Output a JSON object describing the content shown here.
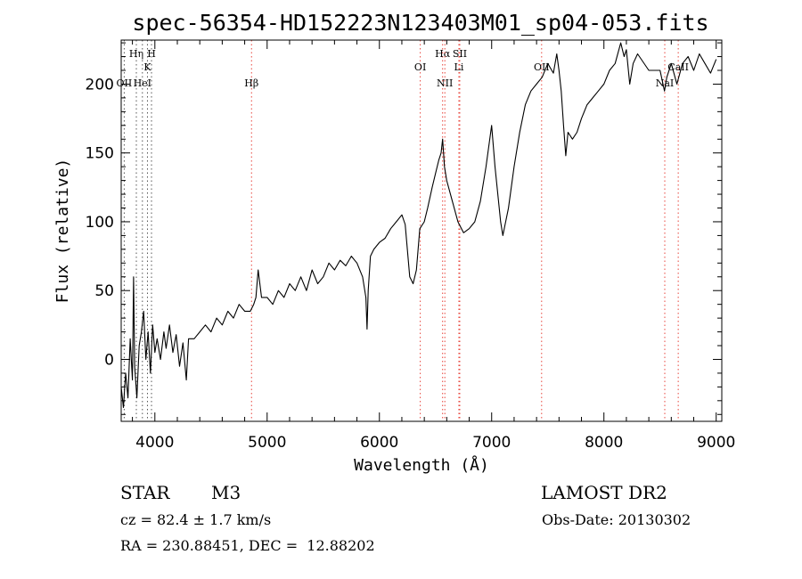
{
  "chart_data": {
    "type": "line",
    "title": "spec-56354-HD152223N123403M01_sp04-053.fits",
    "xlabel": "Wavelength (Å)",
    "ylabel": "Flux (relative)",
    "xlim": [
      3700,
      9050
    ],
    "ylim": [
      -45,
      232
    ],
    "xticks": [
      4000,
      5000,
      6000,
      7000,
      8000,
      9000
    ],
    "yticks": [
      0,
      50,
      100,
      150,
      200
    ],
    "grid": false,
    "series": [
      {
        "points": [
          [
            3700,
            -20
          ],
          [
            3720,
            -35
          ],
          [
            3740,
            -10
          ],
          [
            3760,
            -28
          ],
          [
            3780,
            15
          ],
          [
            3800,
            -15
          ],
          [
            3810,
            60
          ],
          [
            3820,
            -5
          ],
          [
            3840,
            -28
          ],
          [
            3860,
            10
          ],
          [
            3880,
            20
          ],
          [
            3900,
            35
          ],
          [
            3920,
            0
          ],
          [
            3940,
            20
          ],
          [
            3960,
            -10
          ],
          [
            3980,
            25
          ],
          [
            4000,
            5
          ],
          [
            4020,
            15
          ],
          [
            4050,
            0
          ],
          [
            4080,
            20
          ],
          [
            4100,
            8
          ],
          [
            4130,
            25
          ],
          [
            4160,
            5
          ],
          [
            4190,
            18
          ],
          [
            4220,
            -5
          ],
          [
            4250,
            12
          ],
          [
            4280,
            -15
          ],
          [
            4300,
            15
          ],
          [
            4350,
            15
          ],
          [
            4400,
            20
          ],
          [
            4450,
            25
          ],
          [
            4500,
            20
          ],
          [
            4550,
            30
          ],
          [
            4600,
            25
          ],
          [
            4650,
            35
          ],
          [
            4700,
            30
          ],
          [
            4750,
            40
          ],
          [
            4800,
            35
          ],
          [
            4850,
            35
          ],
          [
            4880,
            40
          ],
          [
            4900,
            45
          ],
          [
            4920,
            65
          ],
          [
            4950,
            45
          ],
          [
            5000,
            45
          ],
          [
            5050,
            40
          ],
          [
            5100,
            50
          ],
          [
            5150,
            45
          ],
          [
            5200,
            55
          ],
          [
            5250,
            50
          ],
          [
            5300,
            60
          ],
          [
            5350,
            50
          ],
          [
            5400,
            65
          ],
          [
            5450,
            55
          ],
          [
            5500,
            60
          ],
          [
            5550,
            70
          ],
          [
            5600,
            65
          ],
          [
            5650,
            72
          ],
          [
            5700,
            68
          ],
          [
            5750,
            75
          ],
          [
            5800,
            70
          ],
          [
            5850,
            60
          ],
          [
            5880,
            45
          ],
          [
            5890,
            22
          ],
          [
            5900,
            50
          ],
          [
            5920,
            75
          ],
          [
            5950,
            80
          ],
          [
            6000,
            85
          ],
          [
            6050,
            88
          ],
          [
            6100,
            95
          ],
          [
            6150,
            100
          ],
          [
            6200,
            105
          ],
          [
            6230,
            98
          ],
          [
            6270,
            60
          ],
          [
            6300,
            55
          ],
          [
            6330,
            65
          ],
          [
            6360,
            95
          ],
          [
            6400,
            100
          ],
          [
            6430,
            110
          ],
          [
            6470,
            125
          ],
          [
            6500,
            135
          ],
          [
            6530,
            145
          ],
          [
            6550,
            150
          ],
          [
            6563,
            160
          ],
          [
            6580,
            140
          ],
          [
            6600,
            130
          ],
          [
            6650,
            115
          ],
          [
            6700,
            100
          ],
          [
            6750,
            92
          ],
          [
            6800,
            95
          ],
          [
            6850,
            100
          ],
          [
            6900,
            115
          ],
          [
            6950,
            140
          ],
          [
            7000,
            170
          ],
          [
            7030,
            140
          ],
          [
            7080,
            100
          ],
          [
            7100,
            90
          ],
          [
            7150,
            110
          ],
          [
            7200,
            140
          ],
          [
            7250,
            165
          ],
          [
            7300,
            185
          ],
          [
            7350,
            195
          ],
          [
            7400,
            200
          ],
          [
            7450,
            205
          ],
          [
            7500,
            215
          ],
          [
            7550,
            208
          ],
          [
            7580,
            222
          ],
          [
            7600,
            210
          ],
          [
            7620,
            195
          ],
          [
            7640,
            170
          ],
          [
            7660,
            148
          ],
          [
            7680,
            165
          ],
          [
            7720,
            160
          ],
          [
            7760,
            165
          ],
          [
            7800,
            175
          ],
          [
            7850,
            185
          ],
          [
            7900,
            190
          ],
          [
            7950,
            195
          ],
          [
            8000,
            200
          ],
          [
            8050,
            210
          ],
          [
            8100,
            215
          ],
          [
            8150,
            230
          ],
          [
            8180,
            220
          ],
          [
            8200,
            225
          ],
          [
            8230,
            200
          ],
          [
            8260,
            215
          ],
          [
            8300,
            222
          ],
          [
            8400,
            210
          ],
          [
            8500,
            210
          ],
          [
            8540,
            195
          ],
          [
            8560,
            205
          ],
          [
            8600,
            215
          ],
          [
            8650,
            200
          ],
          [
            8700,
            215
          ],
          [
            8750,
            220
          ],
          [
            8800,
            210
          ],
          [
            8850,
            222
          ],
          [
            8900,
            215
          ],
          [
            8950,
            208
          ],
          [
            9000,
            218
          ]
        ]
      }
    ],
    "lines": [
      {
        "x": 3727,
        "label": "OII",
        "row": 3
      },
      {
        "x": 3835,
        "label": "Hη",
        "row": 1
      },
      {
        "x": 3889,
        "label": "HeI",
        "row": 3
      },
      {
        "x": 3934,
        "label": "K",
        "row": 2
      },
      {
        "x": 3970,
        "label": "H",
        "row": 1
      },
      {
        "x": 4861,
        "label": "Hβ",
        "row": 3
      },
      {
        "x": 6364,
        "label": "OI",
        "row": 2
      },
      {
        "x": 6563,
        "label": "Hα",
        "row": 1
      },
      {
        "x": 6583,
        "label": "NII",
        "row": 3
      },
      {
        "x": 6716,
        "label": "SII",
        "row": 1
      },
      {
        "x": 6708,
        "label": "Li",
        "row": 2
      },
      {
        "x": 7445,
        "label": "OII",
        "row": 2
      },
      {
        "x": 8542,
        "label": "NaI",
        "row": 3
      },
      {
        "x": 8662,
        "label": "CaII",
        "row": 2
      }
    ]
  },
  "info": {
    "class_label": "STAR",
    "subclass": "M3",
    "survey": "LAMOST DR2",
    "redshift": "cz = 82.4 ± 1.7 km/s",
    "obs_date": "Obs-Date: 20130302",
    "coords": "RA = 230.88451, DEC =  12.88202"
  },
  "colors": {
    "line": "#000000",
    "marker": "#e8453c",
    "marker_alt": "#555555"
  }
}
